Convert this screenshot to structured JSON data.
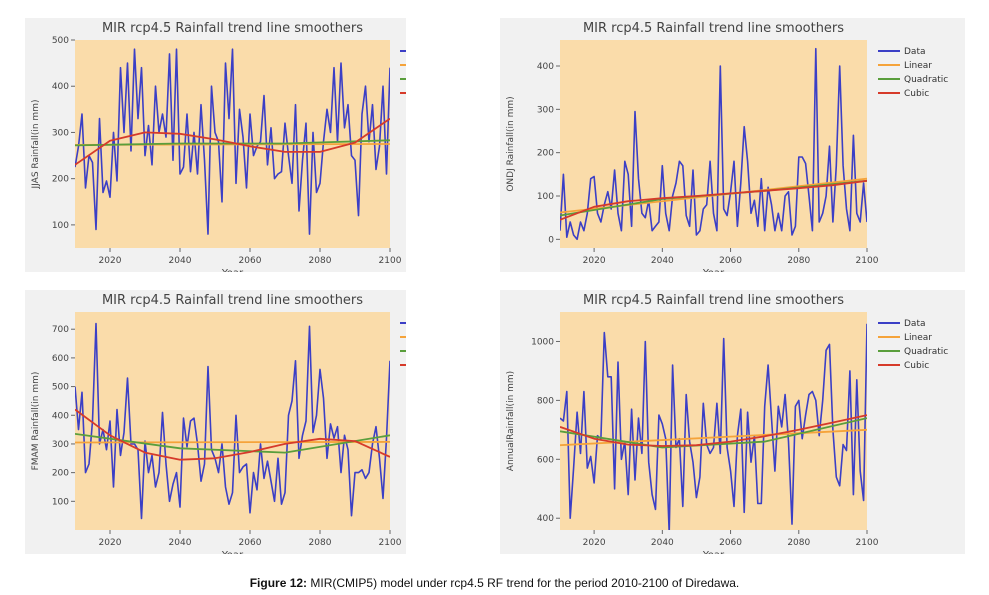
{
  "caption": {
    "label": "Figure 12:",
    "text": " MIR(CMIP5) model under rcp4.5 RF  trend for the period 2010-2100 of Diredawa."
  },
  "colors": {
    "plot_bg": "#fadcaa",
    "data": "#3b3fc6",
    "linear": "#f5a33a",
    "quadratic": "#5a9e3c",
    "cubic": "#d63a2a"
  },
  "chart_data": [
    {
      "type": "line",
      "title": "MIR rcp4.5 Rainfall trend line smoothers",
      "xlabel": "Year",
      "ylabel": "JJAS Rainfall(in mm)",
      "xlim": [
        2010,
        2100
      ],
      "ylim": [
        50,
        500
      ],
      "xticks": [
        2020,
        2040,
        2060,
        2080,
        2100
      ],
      "yticks": [
        100,
        200,
        300,
        400,
        500
      ],
      "legend": "top-right",
      "grid": false,
      "series": [
        {
          "name": "Data",
          "x_start": 2010,
          "x_step": 1,
          "values": [
            225,
            270,
            340,
            180,
            250,
            235,
            90,
            330,
            170,
            195,
            160,
            300,
            195,
            440,
            300,
            450,
            260,
            480,
            330,
            440,
            250,
            315,
            230,
            400,
            300,
            340,
            290,
            470,
            240,
            480,
            210,
            225,
            340,
            215,
            300,
            210,
            360,
            240,
            80,
            400,
            300,
            280,
            150,
            450,
            330,
            480,
            190,
            350,
            290,
            180,
            340,
            250,
            270,
            280,
            380,
            230,
            310,
            200,
            210,
            215,
            320,
            250,
            190,
            360,
            130,
            240,
            320,
            80,
            300,
            170,
            190,
            280,
            350,
            300,
            440,
            280,
            450,
            310,
            360,
            250,
            240,
            120,
            340,
            400,
            280,
            360,
            220,
            270,
            400,
            210,
            440
          ]
        },
        {
          "name": "Linear",
          "x": [
            2010,
            2100
          ],
          "values": [
            273,
            275
          ]
        },
        {
          "name": "Quadratic",
          "x": [
            2010,
            2040,
            2070,
            2100
          ],
          "values": [
            272,
            276,
            276,
            283
          ]
        },
        {
          "name": "Cubic",
          "x": [
            2010,
            2020,
            2030,
            2040,
            2050,
            2060,
            2070,
            2080,
            2090,
            2100
          ],
          "values": [
            230,
            282,
            300,
            297,
            285,
            270,
            258,
            258,
            278,
            330
          ]
        }
      ]
    },
    {
      "type": "line",
      "title": "MIR rcp4.5 Rainfall trend line smoothers",
      "xlabel": "Year",
      "ylabel": "ONDJ Rainfall(in mm)",
      "xlim": [
        2010,
        2100
      ],
      "ylim": [
        -20,
        460
      ],
      "xticks": [
        2020,
        2040,
        2060,
        2080,
        2100
      ],
      "yticks": [
        0,
        100,
        200,
        300,
        400
      ],
      "legend": "top-right",
      "grid": false,
      "series": [
        {
          "name": "Data",
          "x_start": 2010,
          "x_step": 1,
          "values": [
            20,
            150,
            5,
            40,
            10,
            0,
            40,
            20,
            60,
            140,
            145,
            60,
            40,
            80,
            110,
            70,
            160,
            60,
            20,
            180,
            150,
            30,
            295,
            140,
            60,
            50,
            90,
            20,
            30,
            40,
            170,
            60,
            20,
            100,
            130,
            180,
            170,
            55,
            30,
            160,
            10,
            20,
            70,
            80,
            180,
            60,
            20,
            400,
            70,
            55,
            110,
            180,
            30,
            130,
            260,
            180,
            60,
            90,
            30,
            140,
            20,
            120,
            80,
            20,
            60,
            20,
            100,
            110,
            10,
            30,
            190,
            190,
            175,
            100,
            20,
            440,
            40,
            60,
            100,
            215,
            40,
            170,
            400,
            170,
            70,
            20,
            240,
            60,
            40,
            130,
            40
          ]
        },
        {
          "name": "Linear",
          "x": [
            2010,
            2100
          ],
          "values": [
            62,
            140
          ]
        },
        {
          "name": "Quadratic",
          "x": [
            2010,
            2040,
            2070,
            2100
          ],
          "values": [
            55,
            93,
            112,
            135
          ]
        },
        {
          "name": "Cubic",
          "x": [
            2010,
            2020,
            2030,
            2040,
            2050,
            2060,
            2070,
            2080,
            2090,
            2100
          ],
          "values": [
            45,
            75,
            88,
            95,
            100,
            106,
            112,
            118,
            125,
            135
          ]
        }
      ]
    },
    {
      "type": "line",
      "title": "MIR rcp4.5 Rainfall trend line smoothers",
      "xlabel": "Year",
      "ylabel": "FMAM Rainfall(in mm)",
      "xlim": [
        2010,
        2100
      ],
      "ylim": [
        0,
        760
      ],
      "xticks": [
        2020,
        2040,
        2060,
        2080,
        2100
      ],
      "yticks": [
        100,
        200,
        300,
        400,
        500,
        600,
        700
      ],
      "legend": "top-right",
      "grid": false,
      "series": [
        {
          "name": "Data",
          "x_start": 2010,
          "x_step": 1,
          "values": [
            500,
            350,
            480,
            200,
            230,
            380,
            720,
            300,
            350,
            280,
            380,
            150,
            420,
            260,
            340,
            530,
            300,
            300,
            280,
            40,
            310,
            200,
            260,
            150,
            200,
            410,
            230,
            100,
            160,
            200,
            80,
            390,
            290,
            380,
            390,
            300,
            170,
            230,
            570,
            280,
            250,
            200,
            300,
            150,
            90,
            130,
            400,
            200,
            220,
            230,
            60,
            200,
            140,
            300,
            180,
            240,
            170,
            100,
            250,
            90,
            130,
            400,
            450,
            590,
            250,
            330,
            380,
            710,
            340,
            400,
            560,
            460,
            250,
            370,
            320,
            360,
            200,
            330,
            280,
            50,
            200,
            200,
            210,
            180,
            200,
            300,
            360,
            250,
            110,
            320,
            590
          ]
        },
        {
          "name": "Linear",
          "x": [
            2010,
            2100
          ],
          "values": [
            305,
            307
          ]
        },
        {
          "name": "Quadratic",
          "x": [
            2010,
            2040,
            2070,
            2100
          ],
          "values": [
            335,
            285,
            270,
            330
          ]
        },
        {
          "name": "Cubic",
          "x": [
            2010,
            2020,
            2030,
            2040,
            2050,
            2060,
            2070,
            2080,
            2090,
            2100
          ],
          "values": [
            420,
            330,
            270,
            245,
            250,
            272,
            300,
            318,
            310,
            255
          ]
        }
      ]
    },
    {
      "type": "line",
      "title": "MIR rcp4.5 Rainfall trend line smoothers",
      "xlabel": "Year",
      "ylabel": "AnnualRainfall(in mm)",
      "xlim": [
        2010,
        2100
      ],
      "ylim": [
        360,
        1100
      ],
      "xticks": [
        2020,
        2040,
        2060,
        2080,
        2100
      ],
      "yticks": [
        400,
        600,
        800,
        1000
      ],
      "legend": "top-right",
      "grid": false,
      "series": [
        {
          "name": "Data",
          "x_start": 2010,
          "x_step": 1,
          "values": [
            740,
            730,
            830,
            400,
            570,
            760,
            620,
            830,
            570,
            610,
            520,
            680,
            670,
            1030,
            880,
            880,
            500,
            930,
            600,
            660,
            480,
            770,
            530,
            740,
            620,
            1000,
            590,
            480,
            430,
            750,
            720,
            670,
            350,
            920,
            640,
            670,
            440,
            820,
            660,
            590,
            470,
            540,
            790,
            650,
            620,
            640,
            790,
            620,
            1010,
            640,
            560,
            440,
            680,
            770,
            420,
            760,
            590,
            680,
            450,
            450,
            780,
            920,
            740,
            560,
            780,
            710,
            820,
            660,
            380,
            780,
            800,
            670,
            750,
            820,
            830,
            800,
            680,
            800,
            970,
            990,
            700,
            540,
            510,
            650,
            630,
            900,
            480,
            870,
            560,
            460,
            1060
          ]
        },
        {
          "name": "Linear",
          "x": [
            2010,
            2100
          ],
          "values": [
            648,
            700
          ]
        },
        {
          "name": "Quadratic",
          "x": [
            2010,
            2040,
            2070,
            2100
          ],
          "values": [
            695,
            640,
            660,
            740
          ]
        },
        {
          "name": "Cubic",
          "x": [
            2010,
            2020,
            2030,
            2040,
            2050,
            2060,
            2070,
            2080,
            2090,
            2100
          ],
          "values": [
            710,
            670,
            650,
            645,
            648,
            660,
            678,
            700,
            725,
            750
          ]
        }
      ]
    }
  ]
}
